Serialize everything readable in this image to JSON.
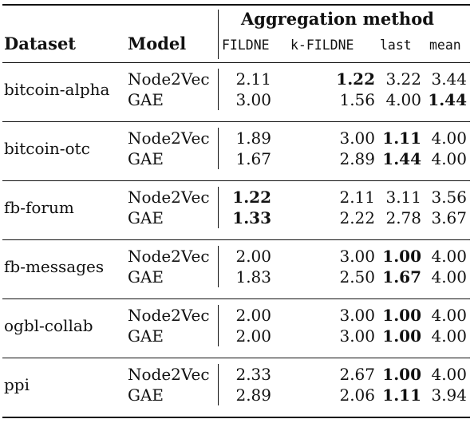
{
  "table": {
    "group_header": "Aggregation method",
    "columns": {
      "dataset": "Dataset",
      "model": "Model",
      "methods": [
        "FILDNE",
        "k-FILDNE",
        "last",
        "mean"
      ]
    },
    "datasets": [
      {
        "name": "bitcoin-alpha",
        "rows": [
          {
            "model": "Node2Vec",
            "values": [
              "2.11",
              "1.22",
              "3.22",
              "3.44"
            ],
            "bold": [
              false,
              true,
              false,
              false
            ]
          },
          {
            "model": "GAE",
            "values": [
              "3.00",
              "1.56",
              "4.00",
              "1.44"
            ],
            "bold": [
              false,
              false,
              false,
              true
            ]
          }
        ]
      },
      {
        "name": "bitcoin-otc",
        "rows": [
          {
            "model": "Node2Vec",
            "values": [
              "1.89",
              "3.00",
              "1.11",
              "4.00"
            ],
            "bold": [
              false,
              false,
              true,
              false
            ]
          },
          {
            "model": "GAE",
            "values": [
              "1.67",
              "2.89",
              "1.44",
              "4.00"
            ],
            "bold": [
              false,
              false,
              true,
              false
            ]
          }
        ]
      },
      {
        "name": "fb-forum",
        "rows": [
          {
            "model": "Node2Vec",
            "values": [
              "1.22",
              "2.11",
              "3.11",
              "3.56"
            ],
            "bold": [
              true,
              false,
              false,
              false
            ]
          },
          {
            "model": "GAE",
            "values": [
              "1.33",
              "2.22",
              "2.78",
              "3.67"
            ],
            "bold": [
              true,
              false,
              false,
              false
            ]
          }
        ]
      },
      {
        "name": "fb-messages",
        "rows": [
          {
            "model": "Node2Vec",
            "values": [
              "2.00",
              "3.00",
              "1.00",
              "4.00"
            ],
            "bold": [
              false,
              false,
              true,
              false
            ]
          },
          {
            "model": "GAE",
            "values": [
              "1.83",
              "2.50",
              "1.67",
              "4.00"
            ],
            "bold": [
              false,
              false,
              true,
              false
            ]
          }
        ]
      },
      {
        "name": "ogbl-collab",
        "rows": [
          {
            "model": "Node2Vec",
            "values": [
              "2.00",
              "3.00",
              "1.00",
              "4.00"
            ],
            "bold": [
              false,
              false,
              true,
              false
            ]
          },
          {
            "model": "GAE",
            "values": [
              "2.00",
              "3.00",
              "1.00",
              "4.00"
            ],
            "bold": [
              false,
              false,
              true,
              false
            ]
          }
        ]
      },
      {
        "name": "ppi",
        "rows": [
          {
            "model": "Node2Vec",
            "values": [
              "2.33",
              "2.67",
              "1.00",
              "4.00"
            ],
            "bold": [
              false,
              false,
              true,
              false
            ]
          },
          {
            "model": "GAE",
            "values": [
              "2.89",
              "2.06",
              "1.11",
              "3.94"
            ],
            "bold": [
              false,
              false,
              true,
              false
            ]
          }
        ]
      }
    ]
  }
}
